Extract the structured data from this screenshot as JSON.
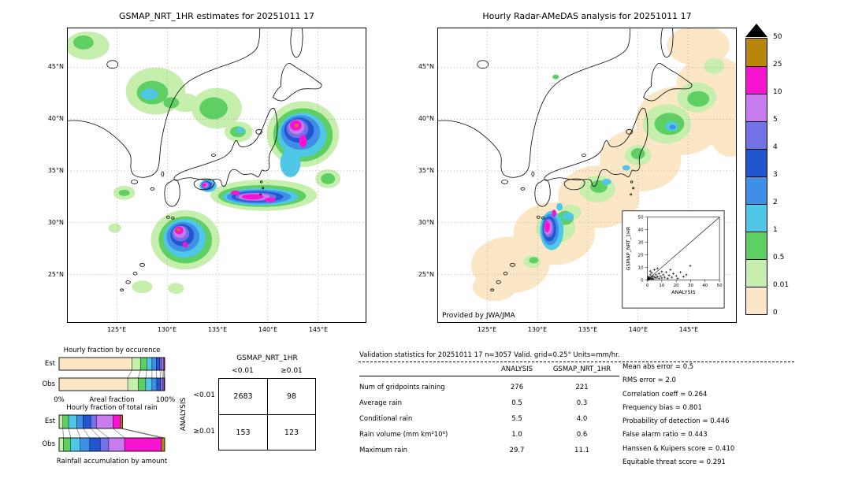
{
  "figure": {
    "left_title": "GSMAP_NRT_1HR estimates for 20251011 17",
    "right_title": "Hourly Radar-AMeDAS analysis for 20251011 17",
    "credit": "Provided by JWA/JMA"
  },
  "map_axes": {
    "lat_labels": [
      "45°N",
      "40°N",
      "35°N",
      "30°N",
      "25°N"
    ],
    "lon_labels": [
      "125°E",
      "130°E",
      "135°E",
      "140°E",
      "145°E"
    ]
  },
  "palette_low_to_high": [
    "#fbe6c5",
    "#c6eead",
    "#5ecf63",
    "#4fc8e8",
    "#3f8fe8",
    "#2255d0",
    "#7272e8",
    "#c77df0",
    "#f713cf",
    "#b8860b"
  ],
  "colorbar": {
    "labels_top_to_bottom": [
      "50",
      "25",
      "10",
      "5",
      "4",
      "3",
      "2",
      "1",
      "0.5",
      "0.01",
      "0"
    ],
    "over_max_marker": "black-triangle"
  },
  "labels": {
    "est": "Est",
    "obs": "Obs",
    "zero_pct": "0%",
    "hundred_pct": "100%",
    "areal_fraction": "Areal fraction"
  },
  "occurrence_chart": {
    "title": "Hourly fraction by occurence"
  },
  "totalrain_chart": {
    "title": "Hourly fraction of total rain",
    "footer": "Rainfall accumulation by amount"
  },
  "contingency": {
    "title": "GSMAP_NRT_1HR",
    "row_axis": "ANALYSIS",
    "col_labels": [
      "<0.01",
      "≥0.01"
    ],
    "row_labels": [
      "<0.01",
      "≥0.01"
    ],
    "values": [
      [
        "2683",
        "98"
      ],
      [
        "153",
        "123"
      ]
    ]
  },
  "validation": {
    "title": "Validation statistics for 20251011 17  n=3057 Valid. grid=0.25° Units=mm/hr.",
    "columns": [
      "ANALYSIS",
      "GSMAP_NRT_1HR"
    ],
    "rows": [
      {
        "label": "Num of gridpoints raining",
        "analysis": "276",
        "gsmap": "221"
      },
      {
        "label": "Average rain",
        "analysis": "0.5",
        "gsmap": "0.3"
      },
      {
        "label": "Conditional rain",
        "analysis": "5.5",
        "gsmap": "4.0"
      },
      {
        "label": "Rain volume (mm km²10⁶)",
        "analysis": "1.0",
        "gsmap": "0.6"
      },
      {
        "label": "Maximum rain",
        "analysis": "29.7",
        "gsmap": "11.1"
      }
    ],
    "stats": [
      {
        "label": "Mean abs error",
        "value": "0.5"
      },
      {
        "label": "RMS error",
        "value": "2.0"
      },
      {
        "label": "Correlation coeff",
        "value": "0.264"
      },
      {
        "label": "Frequency bias",
        "value": "0.801"
      },
      {
        "label": "Probability of detection",
        "value": "0.446"
      },
      {
        "label": "False alarm ratio",
        "value": "0.443"
      },
      {
        "label": "Hanssen & Kuipers score",
        "value": "0.410"
      },
      {
        "label": "Equitable threat score",
        "value": "0.291"
      }
    ]
  },
  "inset": {
    "xlabel": "ANALYSIS",
    "ylabel": "GSMAP_NRT_1HR",
    "ticks": [
      "0",
      "10",
      "20",
      "30",
      "40",
      "50"
    ]
  },
  "chart_data": [
    {
      "type": "heatmap",
      "title": "GSMAP_NRT_1HR estimates for 20251011 17",
      "units": "mm/hr",
      "region": {
        "lon_range": [
          121,
          149
        ],
        "lat_range": [
          21,
          49
        ]
      },
      "levels": [
        0,
        0.01,
        0.5,
        1,
        2,
        3,
        4,
        5,
        10,
        25,
        50
      ],
      "legend_position": "right"
    },
    {
      "type": "heatmap",
      "title": "Hourly Radar-AMeDAS analysis for 20251011 17",
      "units": "mm/hr",
      "region": {
        "lon_range": [
          121,
          149
        ],
        "lat_range": [
          21,
          49
        ]
      },
      "levels": [
        0,
        0.01,
        0.5,
        1,
        2,
        3,
        4,
        5,
        10,
        25,
        50
      ],
      "annotation": "Provided by JWA/JMA"
    },
    {
      "type": "bar",
      "title": "Hourly fraction by occurence",
      "orientation": "horizontal",
      "stacked": true,
      "categories": [
        "Est",
        "Obs"
      ],
      "xlabel": "Areal fraction",
      "xlim": [
        "0%",
        "100%"
      ],
      "class_levels": [
        0,
        0.01,
        0.5,
        1,
        2,
        3,
        4,
        5,
        10,
        25,
        50
      ],
      "series": [
        {
          "name": "Est",
          "values": [
            69,
            8,
            6,
            5,
            4,
            3.5,
            2,
            1.5,
            0.7,
            0.3
          ]
        },
        {
          "name": "Obs",
          "values": [
            65,
            10,
            7,
            6,
            4.5,
            3.5,
            2,
            1.2,
            0.5,
            0.3
          ]
        }
      ],
      "length_scale": {
        "Est": 1.0,
        "Obs": 1.0
      }
    },
    {
      "type": "bar",
      "title": "Hourly fraction of total rain",
      "orientation": "horizontal",
      "stacked": true,
      "categories": [
        "Est",
        "Obs"
      ],
      "note": "Rainfall accumulation by amount; bar length scaled by rain volume (Est 0.6 vs Obs 1.0)",
      "class_levels": [
        0,
        0.01,
        0.5,
        1,
        2,
        3,
        4,
        5,
        10,
        25,
        50
      ],
      "series": [
        {
          "name": "Est",
          "values": [
            0,
            6,
            9,
            13,
            10,
            12,
            9,
            26,
            12,
            3
          ]
        },
        {
          "name": "Obs",
          "values": [
            0,
            4,
            7,
            9,
            9,
            10,
            8,
            15,
            35,
            3
          ]
        }
      ],
      "length_scale": {
        "Est": 0.6,
        "Obs": 1.0
      }
    },
    {
      "type": "table",
      "title": "Contingency table GSMAP_NRT_1HR vs ANALYSIS",
      "columns": [
        "<0.01",
        "≥0.01"
      ],
      "rows": [
        "<0.01",
        "≥0.01"
      ],
      "values": [
        [
          2683,
          98
        ],
        [
          153,
          123
        ]
      ]
    },
    {
      "type": "table",
      "title": "Validation statistics for 20251011 17  n=3057 Valid. grid=0.25° Units=mm/hr.",
      "columns": [
        "ANALYSIS",
        "GSMAP_NRT_1HR"
      ],
      "rows": [
        [
          "Num of gridpoints raining",
          276,
          221
        ],
        [
          "Average rain",
          0.5,
          0.3
        ],
        [
          "Conditional rain",
          5.5,
          4.0
        ],
        [
          "Rain volume (mm km²10⁶)",
          1.0,
          0.6
        ],
        [
          "Maximum rain",
          29.7,
          11.1
        ]
      ]
    },
    {
      "type": "scatter",
      "xlabel": "ANALYSIS",
      "ylabel": "GSMAP_NRT_1HR",
      "xlim": [
        0,
        50
      ],
      "ylim": [
        0,
        50
      ],
      "diagonal_line": true,
      "points_estimated": true,
      "points": [
        [
          0.2,
          0.1
        ],
        [
          0.5,
          0.4
        ],
        [
          0.5,
          2
        ],
        [
          0.8,
          1.2
        ],
        [
          1,
          0.3
        ],
        [
          1.2,
          2.2
        ],
        [
          1.5,
          0.8
        ],
        [
          2,
          1.5
        ],
        [
          2,
          4
        ],
        [
          2,
          7
        ],
        [
          2.5,
          0.5
        ],
        [
          3,
          2.2
        ],
        [
          3,
          5.5
        ],
        [
          3.5,
          1
        ],
        [
          4,
          3
        ],
        [
          4,
          0.5
        ],
        [
          5,
          2
        ],
        [
          5,
          8
        ],
        [
          6,
          1.5
        ],
        [
          6,
          4
        ],
        [
          7,
          2.5
        ],
        [
          7,
          9
        ],
        [
          8,
          1
        ],
        [
          8,
          5
        ],
        [
          9,
          3
        ],
        [
          10,
          1.5
        ],
        [
          10,
          6.5
        ],
        [
          11,
          4
        ],
        [
          12,
          2
        ],
        [
          13,
          6
        ],
        [
          14,
          1
        ],
        [
          15,
          3.5
        ],
        [
          16,
          8
        ],
        [
          17,
          2
        ],
        [
          18,
          5
        ],
        [
          20,
          3
        ],
        [
          21,
          1
        ],
        [
          23,
          6
        ],
        [
          25,
          2.5
        ],
        [
          27,
          4
        ],
        [
          29.7,
          11.1
        ]
      ]
    }
  ]
}
